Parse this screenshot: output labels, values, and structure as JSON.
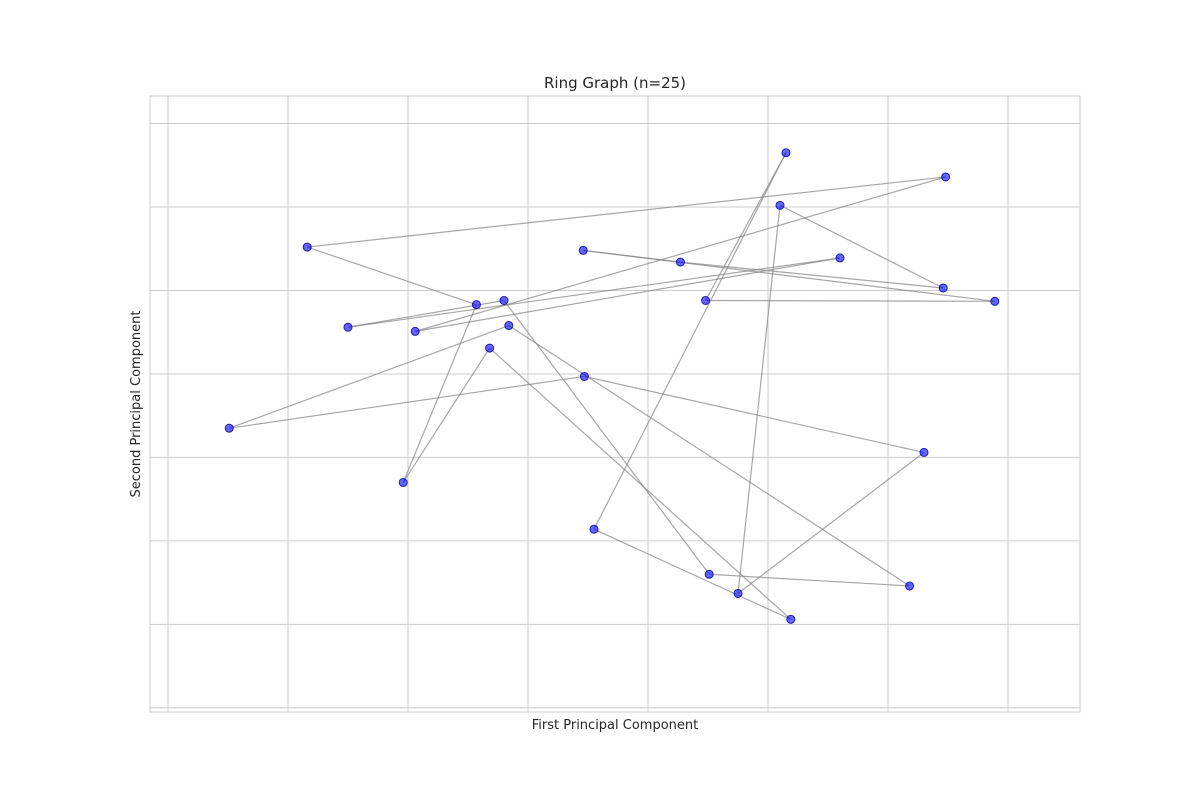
{
  "chart_data": {
    "type": "scatter",
    "title": "Ring Graph (n=25)",
    "xlabel": "First Principal Component",
    "ylabel": "Second Principal Component",
    "xlim": [
      -3.15,
      4.6
    ],
    "ylim": [
      -4.05,
      3.33
    ],
    "x_grid": [
      -3,
      -2,
      -1,
      0,
      1,
      2,
      3,
      4
    ],
    "y_grid": [
      -4,
      -3,
      -2,
      -1,
      0,
      1,
      2,
      3
    ],
    "grid": true,
    "tick_labels_visible": false,
    "node_color": "#0000ff",
    "node_edge_color": "#1a1ab0",
    "edge_color": "#808080",
    "nodes": [
      {
        "x": 0.46,
        "y": 1.48
      },
      {
        "x": 1.27,
        "y": 1.34
      },
      {
        "x": 3.46,
        "y": 1.03
      },
      {
        "x": -1.84,
        "y": 1.52
      },
      {
        "x": -0.43,
        "y": 0.83
      },
      {
        "x": 0.55,
        "y": -1.86
      },
      {
        "x": 2.1,
        "y": 2.02
      },
      {
        "x": 1.48,
        "y": 0.88
      },
      {
        "x": 2.15,
        "y": 2.65
      },
      {
        "x": 3.48,
        "y": 2.36
      },
      {
        "x": -0.94,
        "y": 0.51
      },
      {
        "x": 2.6,
        "y": 1.39
      },
      {
        "x": -1.5,
        "y": 0.56
      },
      {
        "x": 3.89,
        "y": 0.87
      },
      {
        "x": -0.16,
        "y": 0.58
      },
      {
        "x": -2.49,
        "y": -0.65
      },
      {
        "x": 0.47,
        "y": -0.03
      },
      {
        "x": 3.3,
        "y": -0.94
      },
      {
        "x": 1.75,
        "y": -2.63
      },
      {
        "x": -1.04,
        "y": -1.3
      },
      {
        "x": -0.2,
        "y": 0.88
      },
      {
        "x": 2.19,
        "y": -2.94
      },
      {
        "x": -0.32,
        "y": 0.31
      },
      {
        "x": 1.51,
        "y": -2.4
      },
      {
        "x": 3.18,
        "y": -2.54
      }
    ],
    "edges": [
      [
        0,
        1
      ],
      [
        1,
        2
      ],
      [
        2,
        6
      ],
      [
        6,
        18
      ],
      [
        18,
        17
      ],
      [
        17,
        16
      ],
      [
        16,
        15
      ],
      [
        15,
        14
      ],
      [
        14,
        24
      ],
      [
        24,
        23
      ],
      [
        23,
        20
      ],
      [
        20,
        12
      ],
      [
        12,
        11
      ],
      [
        11,
        10
      ],
      [
        10,
        9
      ],
      [
        9,
        3
      ],
      [
        3,
        4
      ],
      [
        4,
        19
      ],
      [
        19,
        22
      ],
      [
        22,
        21
      ],
      [
        21,
        5
      ],
      [
        5,
        8
      ],
      [
        8,
        7
      ],
      [
        7,
        13
      ],
      [
        13,
        0
      ]
    ]
  }
}
